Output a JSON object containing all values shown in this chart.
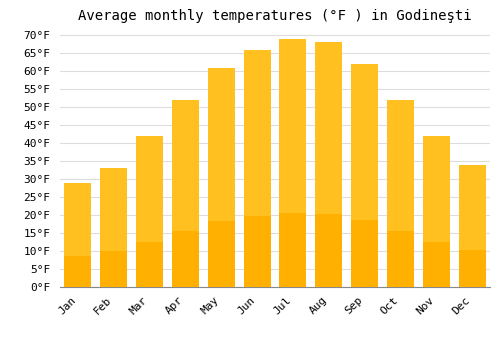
{
  "title": "Average monthly temperatures (°F ) in Godineşti",
  "months": [
    "Jan",
    "Feb",
    "Mar",
    "Apr",
    "May",
    "Jun",
    "Jul",
    "Aug",
    "Sep",
    "Oct",
    "Nov",
    "Dec"
  ],
  "values": [
    29,
    33,
    42,
    52,
    61,
    66,
    69,
    68,
    62,
    52,
    42,
    34
  ],
  "bar_color_top": "#FFC020",
  "bar_color_bottom": "#FFB000",
  "bar_edge_color": "none",
  "background_color": "#FFFFFF",
  "grid_color": "#DDDDDD",
  "ylim": [
    0,
    72
  ],
  "yticks": [
    0,
    5,
    10,
    15,
    20,
    25,
    30,
    35,
    40,
    45,
    50,
    55,
    60,
    65,
    70
  ],
  "ylabel_suffix": "°F",
  "title_fontsize": 10,
  "tick_fontsize": 8,
  "font_family": "monospace"
}
